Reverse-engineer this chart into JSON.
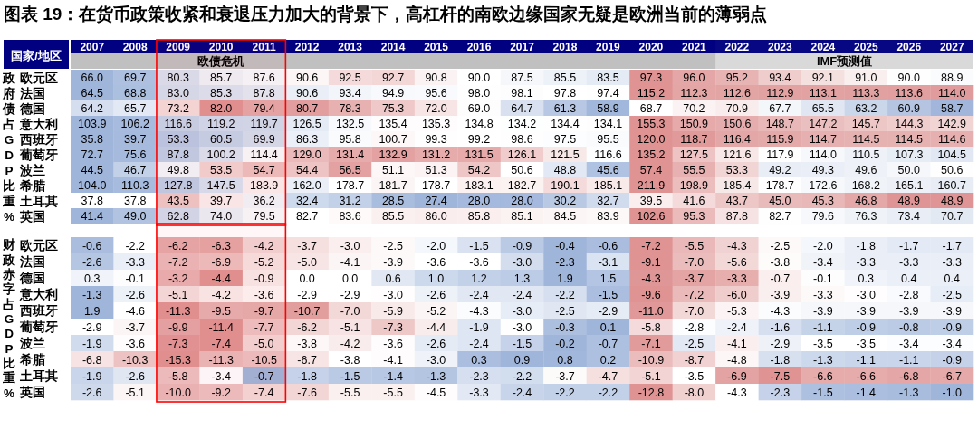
{
  "chart_data": [
    {
      "type": "heatmap",
      "title": "图表 19：在货币政策收紧和衰退压力加大的背景下，高杠杆的南欧边缘国家无疑是欧洲当前的薄弱点",
      "ylabel": "政府债占GDP比重%",
      "annotations": [
        "国家/地区"
      ],
      "categories": [
        "2007",
        "2008",
        "2009",
        "2010",
        "2011",
        "2012",
        "2013",
        "2014",
        "2015",
        "2016",
        "2017",
        "2018",
        "2019",
        "2020",
        "2021",
        "2022",
        "2023",
        "2024",
        "2025",
        "2026",
        "2027"
      ],
      "y_categories": [
        "欧元区",
        "法国",
        "德国",
        "意大利",
        "西班牙",
        "葡萄牙",
        "波兰",
        "希腊",
        "土耳其",
        "英国"
      ],
      "bands": [
        {
          "axis": "x",
          "from": "2009",
          "to": "2011",
          "label": "欧债危机",
          "color": "#ff0000"
        },
        {
          "axis": "x",
          "from": "2022",
          "to": "2027",
          "label": "IMF预测值",
          "color": "#d9d9d9"
        }
      ],
      "cells": [
        [
          66.0,
          69.7,
          80.3,
          85.7,
          87.6,
          90.6,
          92.5,
          92.7,
          90.8,
          90.0,
          87.5,
          85.5,
          83.5,
          97.3,
          96.0,
          95.2,
          93.4,
          92.1,
          91.0,
          90.0,
          88.9
        ],
        [
          64.5,
          68.8,
          83.0,
          85.3,
          87.8,
          90.6,
          93.4,
          94.9,
          95.6,
          98.0,
          98.1,
          97.8,
          97.4,
          115.2,
          112.3,
          112.6,
          112.9,
          113.1,
          113.3,
          113.6,
          114.0
        ],
        [
          64.2,
          65.7,
          73.2,
          82.0,
          79.4,
          80.7,
          78.3,
          75.3,
          72.0,
          69.0,
          64.7,
          61.3,
          58.9,
          68.7,
          70.2,
          70.9,
          67.7,
          65.5,
          63.2,
          60.9,
          58.7
        ],
        [
          103.9,
          106.2,
          116.6,
          119.2,
          119.7,
          126.5,
          132.5,
          135.4,
          135.3,
          134.8,
          134.2,
          134.4,
          134.1,
          155.3,
          150.9,
          150.6,
          148.7,
          147.2,
          145.7,
          144.3,
          142.9
        ],
        [
          35.8,
          39.7,
          53.3,
          60.5,
          69.9,
          86.3,
          95.8,
          100.7,
          99.3,
          99.2,
          98.6,
          97.5,
          95.5,
          120.0,
          118.7,
          116.4,
          115.9,
          114.7,
          114.5,
          114.5,
          114.6
        ],
        [
          72.7,
          75.6,
          87.8,
          100.2,
          114.4,
          129.0,
          131.4,
          132.9,
          131.2,
          131.5,
          126.1,
          121.5,
          116.6,
          135.2,
          127.5,
          121.6,
          117.9,
          114.0,
          110.5,
          107.3,
          104.5
        ],
        [
          44.5,
          46.7,
          49.8,
          53.5,
          54.7,
          54.4,
          56.5,
          51.1,
          51.3,
          54.2,
          50.6,
          48.8,
          45.6,
          57.4,
          55.5,
          53.3,
          49.2,
          49.3,
          49.6,
          50.0,
          50.6
        ],
        [
          104.0,
          110.3,
          127.8,
          147.5,
          183.9,
          162.0,
          178.7,
          181.7,
          178.7,
          183.1,
          182.7,
          190.1,
          185.1,
          211.9,
          198.9,
          185.4,
          178.7,
          172.6,
          168.2,
          165.1,
          160.7
        ],
        [
          37.8,
          37.8,
          43.5,
          39.7,
          36.2,
          32.4,
          31.2,
          28.5,
          27.4,
          28.0,
          28.0,
          30.2,
          32.7,
          39.5,
          41.6,
          43.7,
          45.0,
          45.3,
          46.8,
          48.9,
          48.9
        ],
        [
          41.4,
          49.0,
          62.8,
          74.0,
          79.5,
          82.7,
          83.6,
          85.5,
          86.0,
          85.8,
          85.1,
          84.5,
          83.9,
          102.6,
          95.3,
          87.8,
          82.7,
          79.6,
          76.3,
          73.4,
          70.7
        ]
      ],
      "cell_labels": [
        [
          "66.0",
          "69.7",
          "80.3",
          "85.7",
          "87.6",
          "90.6",
          "92.5",
          "92.7",
          "90.8",
          "90.0",
          "87.5",
          "85.5",
          "83.5",
          "97.3",
          "96.0",
          "95.2",
          "93.4",
          "92.1",
          "91.0",
          "90.0",
          "88.9"
        ],
        [
          "64.5",
          "68.8",
          "83.0",
          "85.3",
          "87.8",
          "90.6",
          "93.4",
          "94.9",
          "95.6",
          "98.0",
          "98.1",
          "97.8",
          "97.4",
          "115.2",
          "112.3",
          "112.6",
          "112.9",
          "113.1",
          "113.3",
          "113.6",
          "114.0"
        ],
        [
          "64.2",
          "65.7",
          "73.2",
          "82.0",
          "79.4",
          "80.7",
          "78.3",
          "75.3",
          "72.0",
          "69.0",
          "64.7",
          "61.3",
          "58.9",
          "68.7",
          "70.2",
          "70.9",
          "67.7",
          "65.5",
          "63.2",
          "60.9",
          "58.7"
        ],
        [
          "103.9",
          "106.2",
          "116.6",
          "119.2",
          "119.7",
          "126.5",
          "132.5",
          "135.4",
          "135.3",
          "134.8",
          "134.2",
          "134.4",
          "134.1",
          "155.3",
          "150.9",
          "150.6",
          "148.7",
          "147.2",
          "145.7",
          "144.3",
          "142.9"
        ],
        [
          "35.8",
          "39.7",
          "53.3",
          "60.5",
          "69.9",
          "86.3",
          "95.8",
          "100.7",
          "99.3",
          "99.2",
          "98.6",
          "97.5",
          "95.5",
          "120.0",
          "118.7",
          "116.4",
          "115.9",
          "114.7",
          "114.5",
          "114.5",
          "114.6"
        ],
        [
          "72.7",
          "75.6",
          "87.8",
          "100.2",
          "114.4",
          "129.0",
          "131.4",
          "132.9",
          "131.2",
          "131.5",
          "126.1",
          "121.5",
          "116.6",
          "135.2",
          "127.5",
          "121.6",
          "117.9",
          "114.0",
          "110.5",
          "107.3",
          "104.5"
        ],
        [
          "44.5",
          "46.7",
          "49.8",
          "53.5",
          "54.7",
          "54.4",
          "56.5",
          "51.1",
          "51.3",
          "54.2",
          "50.6",
          "48.8",
          "45.6",
          "57.4",
          "55.5",
          "53.3",
          "49.2",
          "49.3",
          "49.6",
          "50.0",
          "50.6"
        ],
        [
          "104.0",
          "110.3",
          "127.8",
          "147.5",
          "183.9",
          "162.0",
          "178.7",
          "181.7",
          "178.7",
          "183.1",
          "182.7",
          "190.1",
          "185.1",
          "211.9",
          "198.9",
          "185.4",
          "178.7",
          "172.6",
          "168.2",
          "165.1",
          "160.7"
        ],
        [
          "37.8",
          "37.8",
          "43.5",
          "39.7",
          "36.2",
          "32.4",
          "31.2",
          "28.5",
          "27.4",
          "28.0",
          "28.0",
          "30.2",
          "32.7",
          "39.5",
          "41.6",
          "43.7",
          "45.0",
          "45.3",
          "46.8",
          "48.9",
          "48.9"
        ],
        [
          "41.4",
          "49.0",
          "62.8",
          "74.0",
          "79.5",
          "82.7",
          "83.6",
          "85.5",
          "86.0",
          "85.8",
          "85.1",
          "84.5",
          "83.9",
          "102.6",
          "95.3",
          "87.8",
          "82.7",
          "79.6",
          "76.3",
          "73.4",
          "70.7"
        ]
      ]
    },
    {
      "type": "heatmap",
      "ylabel": "财政赤字占GDP比重%",
      "tick_labels": "y",
      "categories": [
        "2007",
        "2008",
        "2009",
        "2010",
        "2011",
        "2012",
        "2013",
        "2014",
        "2015",
        "2016",
        "2017",
        "2018",
        "2019",
        "2020",
        "2021",
        "2022",
        "2023",
        "2024",
        "2025",
        "2026",
        "2027"
      ],
      "y_categories": [
        "欧元区",
        "法国",
        "德国",
        "意大利",
        "西班牙",
        "葡萄牙",
        "波兰",
        "希腊",
        "土耳其",
        "英国"
      ],
      "bands": [
        {
          "axis": "x",
          "from": "2009",
          "to": "2011",
          "color": "#ff0000"
        }
      ],
      "cells": [
        [
          -0.6,
          -2.2,
          -6.2,
          -6.3,
          -4.2,
          -3.7,
          -3.0,
          -2.5,
          -2.0,
          -1.5,
          -0.9,
          -0.4,
          -0.6,
          -7.2,
          -5.5,
          -4.3,
          -2.5,
          -2.0,
          -1.8,
          -1.7,
          -1.7
        ],
        [
          -2.6,
          -3.3,
          -7.2,
          -6.9,
          -5.2,
          -5.0,
          -4.1,
          -3.9,
          -3.6,
          -3.6,
          -3.0,
          -2.3,
          -3.1,
          -9.1,
          -7.0,
          -5.6,
          -3.8,
          -3.4,
          -3.3,
          -3.3,
          -3.3
        ],
        [
          0.3,
          -0.1,
          -3.2,
          -4.4,
          -0.9,
          0.0,
          0.0,
          0.6,
          1.0,
          1.2,
          1.3,
          1.9,
          1.5,
          -4.3,
          -3.7,
          -3.3,
          -0.7,
          -0.1,
          0.3,
          0.4,
          0.4
        ],
        [
          -1.3,
          -2.6,
          -5.1,
          -4.2,
          -3.6,
          -2.9,
          -2.9,
          -3.0,
          -2.6,
          -2.4,
          -2.4,
          -2.2,
          -1.5,
          -9.6,
          -7.2,
          -6.0,
          -3.9,
          -3.3,
          -3.0,
          -2.8,
          -2.5
        ],
        [
          1.9,
          -4.6,
          -11.3,
          -9.5,
          -9.7,
          -10.7,
          -7.0,
          -5.9,
          -5.2,
          -4.3,
          -3.0,
          -2.5,
          -2.9,
          -11.0,
          -7.0,
          -5.3,
          -4.3,
          -3.9,
          -3.9,
          -3.9,
          -3.9
        ],
        [
          -2.9,
          -3.7,
          -9.9,
          -11.4,
          -7.7,
          -6.2,
          -5.1,
          -7.3,
          -4.4,
          -1.9,
          -3.0,
          -0.3,
          0.1,
          -5.8,
          -2.8,
          -2.4,
          -1.6,
          -1.1,
          -0.9,
          -0.8,
          -0.9
        ],
        [
          -1.9,
          -3.6,
          -7.3,
          -7.4,
          -5.0,
          -3.8,
          -4.2,
          -3.6,
          -2.6,
          -2.4,
          -1.5,
          -0.2,
          -0.7,
          -7.1,
          -2.5,
          -4.1,
          -2.9,
          -3.5,
          -3.5,
          -3.4,
          -3.4
        ],
        [
          -6.8,
          -10.3,
          -15.3,
          -11.3,
          -10.5,
          -6.7,
          -3.8,
          -4.1,
          -3.0,
          0.3,
          0.9,
          0.8,
          0.2,
          -10.9,
          -8.7,
          -4.8,
          -1.8,
          -1.3,
          -1.1,
          -1.1,
          -0.9
        ],
        [
          -1.9,
          -2.6,
          -5.8,
          -3.4,
          -0.7,
          -1.8,
          -1.5,
          -1.4,
          -1.3,
          -2.3,
          -2.2,
          -3.7,
          -4.7,
          -5.1,
          -3.5,
          -6.9,
          -7.5,
          -6.6,
          -6.6,
          -6.8,
          -6.7
        ],
        [
          -2.6,
          -5.1,
          -10.0,
          -9.2,
          -7.4,
          -7.6,
          -5.5,
          -5.5,
          -4.5,
          -3.3,
          -2.4,
          -2.2,
          -2.2,
          -12.8,
          -8.0,
          -4.3,
          -2.3,
          -1.5,
          -1.4,
          -1.3,
          -1.0
        ]
      ],
      "cell_labels": [
        [
          "-0.6",
          "-2.2",
          "-6.2",
          "-6.3",
          "-4.2",
          "-3.7",
          "-3.0",
          "-2.5",
          "-2.0",
          "-1.5",
          "-0.9",
          "-0.4",
          "-0.6",
          "-7.2",
          "-5.5",
          "-4.3",
          "-2.5",
          "-2.0",
          "-1.8",
          "-1.7",
          "-1.7"
        ],
        [
          "-2.6",
          "-3.3",
          "-7.2",
          "-6.9",
          "-5.2",
          "-5.0",
          "-4.1",
          "-3.9",
          "-3.6",
          "-3.6",
          "-3.0",
          "-2.3",
          "-3.1",
          "-9.1",
          "-7.0",
          "-5.6",
          "-3.8",
          "-3.4",
          "-3.3",
          "-3.3",
          "-3.3"
        ],
        [
          "0.3",
          "-0.1",
          "-3.2",
          "-4.4",
          "-0.9",
          "0.0",
          "0.0",
          "0.6",
          "1.0",
          "1.2",
          "1.3",
          "1.9",
          "1.5",
          "-4.3",
          "-3.7",
          "-3.3",
          "-0.7",
          "-0.1",
          "0.3",
          "0.4",
          "0.4"
        ],
        [
          "-1.3",
          "-2.6",
          "-5.1",
          "-4.2",
          "-3.6",
          "-2.9",
          "-2.9",
          "-3.0",
          "-2.6",
          "-2.4",
          "-2.4",
          "-2.2",
          "-1.5",
          "-9.6",
          "-7.2",
          "-6.0",
          "-3.9",
          "-3.3",
          "-3.0",
          "-2.8",
          "-2.5"
        ],
        [
          "1.9",
          "-4.6",
          "-11.3",
          "-9.5",
          "-9.7",
          "-10.7",
          "-7.0",
          "-5.9",
          "-5.2",
          "-4.3",
          "-3.0",
          "-2.5",
          "-2.9",
          "-11.0",
          "-7.0",
          "-5.3",
          "-4.3",
          "-3.9",
          "-3.9",
          "-3.9",
          "-3.9"
        ],
        [
          "-2.9",
          "-3.7",
          "-9.9",
          "-11.4",
          "-7.7",
          "-6.2",
          "-5.1",
          "-7.3",
          "-4.4",
          "-1.9",
          "-3.0",
          "-0.3",
          "0.1",
          "-5.8",
          "-2.8",
          "-2.4",
          "-1.6",
          "-1.1",
          "-0.9",
          "-0.8",
          "-0.9"
        ],
        [
          "-1.9",
          "-3.6",
          "-7.3",
          "-7.4",
          "-5.0",
          "-3.8",
          "-4.2",
          "-3.6",
          "-2.6",
          "-2.4",
          "-1.5",
          "-0.2",
          "-0.7",
          "-7.1",
          "-2.5",
          "-4.1",
          "-2.9",
          "-3.5",
          "-3.5",
          "-3.4",
          "-3.4"
        ],
        [
          "-6.8",
          "-10.3",
          "-15.3",
          "-11.3",
          "-10.5",
          "-6.7",
          "-3.8",
          "-4.1",
          "-3.0",
          "0.3",
          "0.9",
          "0.8",
          "0.2",
          "-10.9",
          "-8.7",
          "-4.8",
          "-1.8",
          "-1.3",
          "-1.1",
          "-1.1",
          "-0.9"
        ],
        [
          "-1.9",
          "-2.6",
          "-5.8",
          "-3.4",
          "-0.7",
          "-1.8",
          "-1.5",
          "-1.4",
          "-1.3",
          "-2.3",
          "-2.2",
          "-3.7",
          "-4.7",
          "-5.1",
          "-3.5",
          "-6.9",
          "-7.5",
          "-6.6",
          "-6.6",
          "-6.8",
          "-6.7"
        ],
        [
          "-2.6",
          "-5.1",
          "-10.0",
          "-9.2",
          "-7.4",
          "-7.6",
          "-5.5",
          "-5.5",
          "-4.5",
          "-3.3",
          "-2.4",
          "-2.2",
          "-2.2",
          "-12.8",
          "-8.0",
          "-4.3",
          "-2.3",
          "-1.5",
          "-1.4",
          "-1.3",
          "-1.0"
        ]
      ]
    }
  ]
}
